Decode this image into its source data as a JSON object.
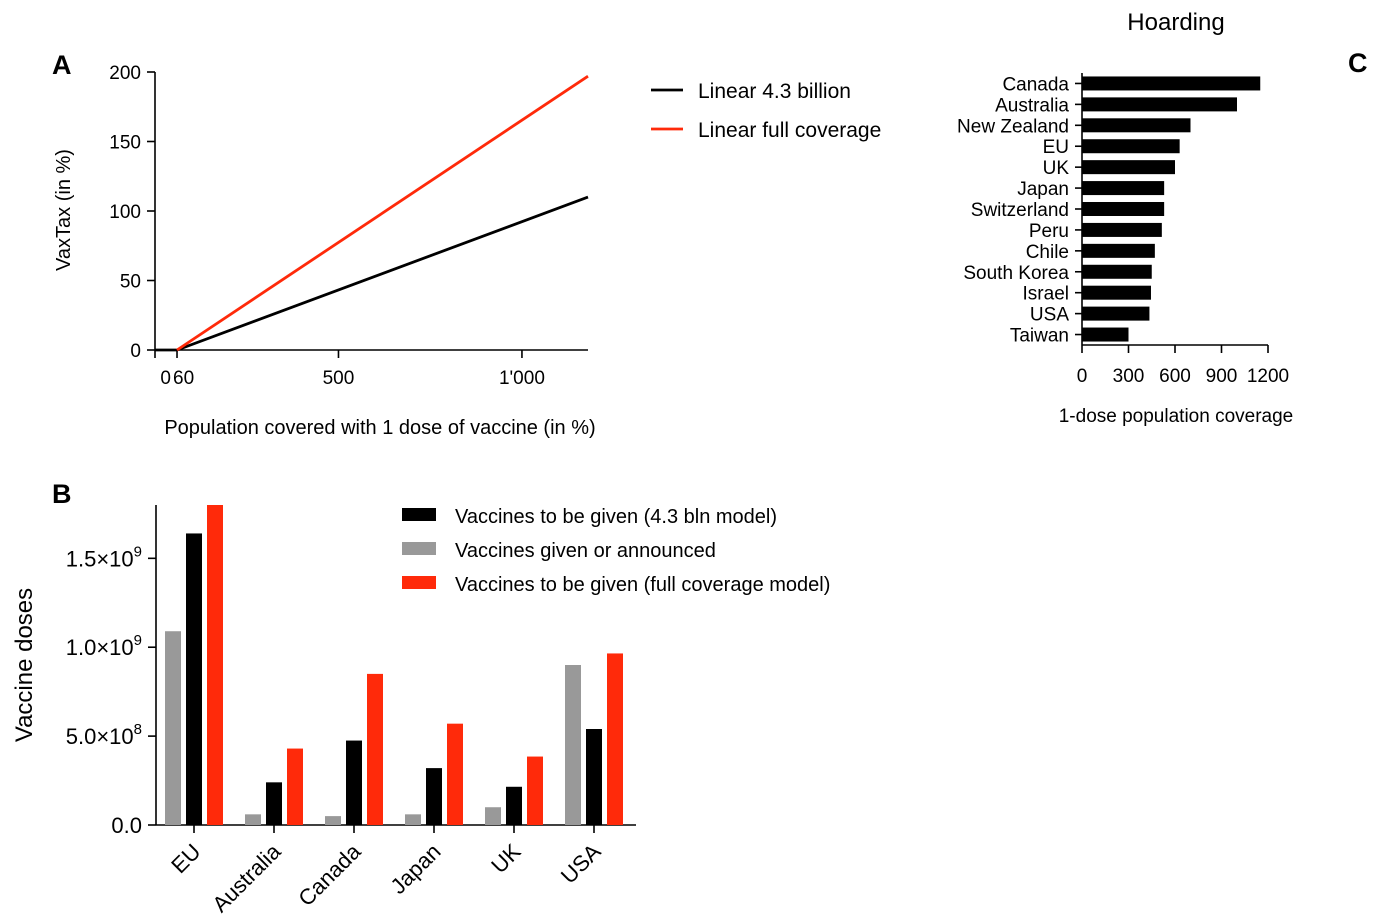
{
  "colors": {
    "black": "#000000",
    "red": "#ff2a0a",
    "gray": "#999999"
  },
  "chart_data": [
    {
      "panel": "A",
      "type": "line",
      "xlabel": "Population covered with 1 dose of vaccine (in %)",
      "ylabel": "VaxTax (in %)",
      "xlim": [
        0,
        1180
      ],
      "ylim": [
        0,
        200
      ],
      "x_ticks": [
        0,
        60,
        500,
        1000
      ],
      "x_tick_labels": [
        "0",
        "60",
        "500",
        "1'000"
      ],
      "y_ticks": [
        0,
        50,
        100,
        150,
        200
      ],
      "y_tick_labels": [
        "0",
        "50",
        "100",
        "150",
        "200"
      ],
      "series": [
        {
          "name": "Linear 4.3 billion",
          "color": "#000000",
          "x": [
            0,
            60,
            1180
          ],
          "y": [
            0,
            0,
            110
          ]
        },
        {
          "name": "Linear full coverage",
          "color": "#ff2a0a",
          "x": [
            60,
            1180
          ],
          "y": [
            0,
            197
          ]
        }
      ],
      "legend_position": "top-right"
    },
    {
      "panel": "B",
      "type": "bar",
      "ylabel": "Vaccine doses",
      "ylim": [
        0,
        1800000000
      ],
      "y_ticks": [
        0,
        500000000,
        1000000000,
        1500000000
      ],
      "y_tick_labels": [
        {
          "mantissa": "0.0",
          "exp": ""
        },
        {
          "mantissa": "5.0×10",
          "exp": "8"
        },
        {
          "mantissa": "1.0×10",
          "exp": "9"
        },
        {
          "mantissa": "1.5×10",
          "exp": "9"
        }
      ],
      "categories": [
        "EU",
        "Australia",
        "Canada",
        "Japan",
        "UK",
        "USA"
      ],
      "series": [
        {
          "name": "Vaccines given or announced",
          "color": "#999999",
          "values": [
            1090000000,
            60000000,
            50000000,
            60000000,
            100000000,
            900000000
          ]
        },
        {
          "name": "Vaccines to be given (4.3 bln model)",
          "color": "#000000",
          "values": [
            1640000000,
            240000000,
            475000000,
            320000000,
            215000000,
            540000000
          ]
        },
        {
          "name": "Vaccines to be given (full coverage model)",
          "color": "#ff2a0a",
          "values": [
            1800000000,
            430000000,
            850000000,
            570000000,
            385000000,
            965000000
          ]
        }
      ],
      "legend_order": [
        1,
        0,
        2
      ],
      "legend_position": "top-right"
    },
    {
      "panel": "C",
      "type": "bar",
      "orientation": "horizontal",
      "title": "Hoarding",
      "xlabel": "1-dose population coverage",
      "xlim": [
        0,
        1200
      ],
      "x_ticks": [
        0,
        300,
        600,
        900,
        1200
      ],
      "x_tick_labels": [
        "0",
        "300",
        "600",
        "900",
        "1200"
      ],
      "categories": [
        "Canada",
        "Australia",
        "New Zealand",
        "EU",
        "UK",
        "Japan",
        "Switzerland",
        "Peru",
        "Chile",
        "South Korea",
        "Israel",
        "USA",
        "Taiwan"
      ],
      "values": [
        1150,
        1000,
        700,
        630,
        600,
        530,
        530,
        515,
        470,
        450,
        445,
        435,
        300
      ],
      "color": "#000000"
    }
  ]
}
